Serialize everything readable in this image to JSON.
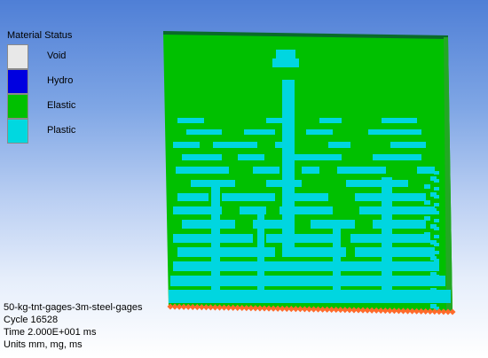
{
  "legend": {
    "title": "Material Status",
    "items": [
      {
        "label": "Void",
        "color": "#e8e8e8"
      },
      {
        "label": "Hydro",
        "color": "#0000e0"
      },
      {
        "label": "Elastic",
        "color": "#00c000"
      },
      {
        "label": "Plastic",
        "color": "#00d8e0"
      }
    ]
  },
  "info": {
    "model_name": "50-kg-tnt-gages-3m-steel-gages",
    "cycle": "Cycle 16528",
    "time": "Time 2.000E+001 ms",
    "units": "Units mm, mg, ms"
  },
  "colors": {
    "elastic": "#00c000",
    "elastic_light": "#14d414",
    "plastic": "#00d6e0",
    "gauge": "#ff6a2a",
    "plate_edge": "#0a6a2a"
  }
}
